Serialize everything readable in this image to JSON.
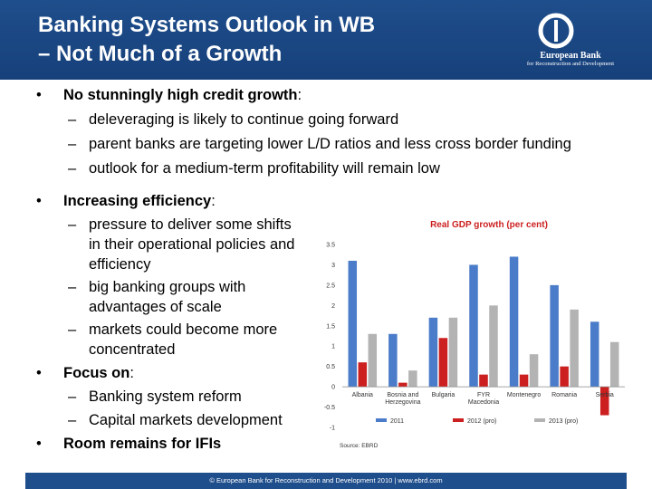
{
  "slide": {
    "title_line1": "Banking Systems Outlook in WB",
    "title_line2": "– Not Much of a Growth",
    "logo_line1": "European Bank",
    "logo_line2": "for Reconstruction and Development",
    "footer": "© European Bank for Reconstruction and Development 2010 | www.ebrd.com"
  },
  "bullets": [
    {
      "bullet": "•",
      "label": "No stunningly high credit growth",
      "suffix": ":",
      "subs": [
        "deleveraging is likely to continue going forward",
        "parent banks are targeting lower L/D ratios and less cross border funding",
        "outlook for a medium-term profitability will remain low"
      ]
    },
    {
      "bullet": "•",
      "label": "Increasing efficiency",
      "suffix": ":",
      "subs": [
        "pressure to deliver some shifts",
        "in their operational policies and",
        "efficiency",
        "big banking groups with",
        "advantages of scale",
        "markets could become more",
        "concentrated"
      ]
    },
    {
      "bullet": "•",
      "label": "Focus on",
      "suffix": ":",
      "subs": [
        "Banking system reform",
        "Capital markets development"
      ]
    },
    {
      "bullet": "•",
      "label": "Room remains for IFIs",
      "suffix": "",
      "subs": []
    }
  ],
  "dash_glyph": "–",
  "chart_data": {
    "type": "bar",
    "title": "Real GDP growth (per cent)",
    "source": "Source: EBRD",
    "categories": [
      "Albania",
      "Bosnia and Herzegovina",
      "Bulgaria",
      "FYR Macedonia",
      "Montenegro",
      "Romania",
      "Serbia"
    ],
    "category_lines": [
      [
        "Albania"
      ],
      [
        "Bosnia and",
        "Herzegovina"
      ],
      [
        "Bulgaria"
      ],
      [
        "FYR",
        "Macedonia"
      ],
      [
        "Montenegro"
      ],
      [
        "Romania"
      ],
      [
        "Serbia"
      ]
    ],
    "series": [
      {
        "name": "2011",
        "values": [
          3.1,
          1.3,
          1.7,
          3.0,
          3.2,
          2.5,
          1.6
        ],
        "color": "#4a7cc9"
      },
      {
        "name": "2012 (pro)",
        "values": [
          0.6,
          0.1,
          1.2,
          0.3,
          0.3,
          0.5,
          -0.7
        ],
        "color": "#cc1f1f"
      },
      {
        "name": "2013 (pro)",
        "values": [
          1.3,
          0.4,
          1.7,
          2.0,
          0.8,
          1.9,
          1.1
        ],
        "color": "#b3b3b3"
      }
    ],
    "ylim": [
      -1,
      3.5
    ],
    "yticks": [
      -1,
      -0.5,
      0,
      0.5,
      1,
      1.5,
      2,
      2.5,
      3,
      3.5
    ],
    "ytick_labels": [
      "-1",
      "-0.5",
      "0",
      "0.5",
      "1",
      "1.5",
      "2",
      "2.5",
      "3",
      "3.5"
    ],
    "grid": false,
    "legend_position": "bottom"
  }
}
